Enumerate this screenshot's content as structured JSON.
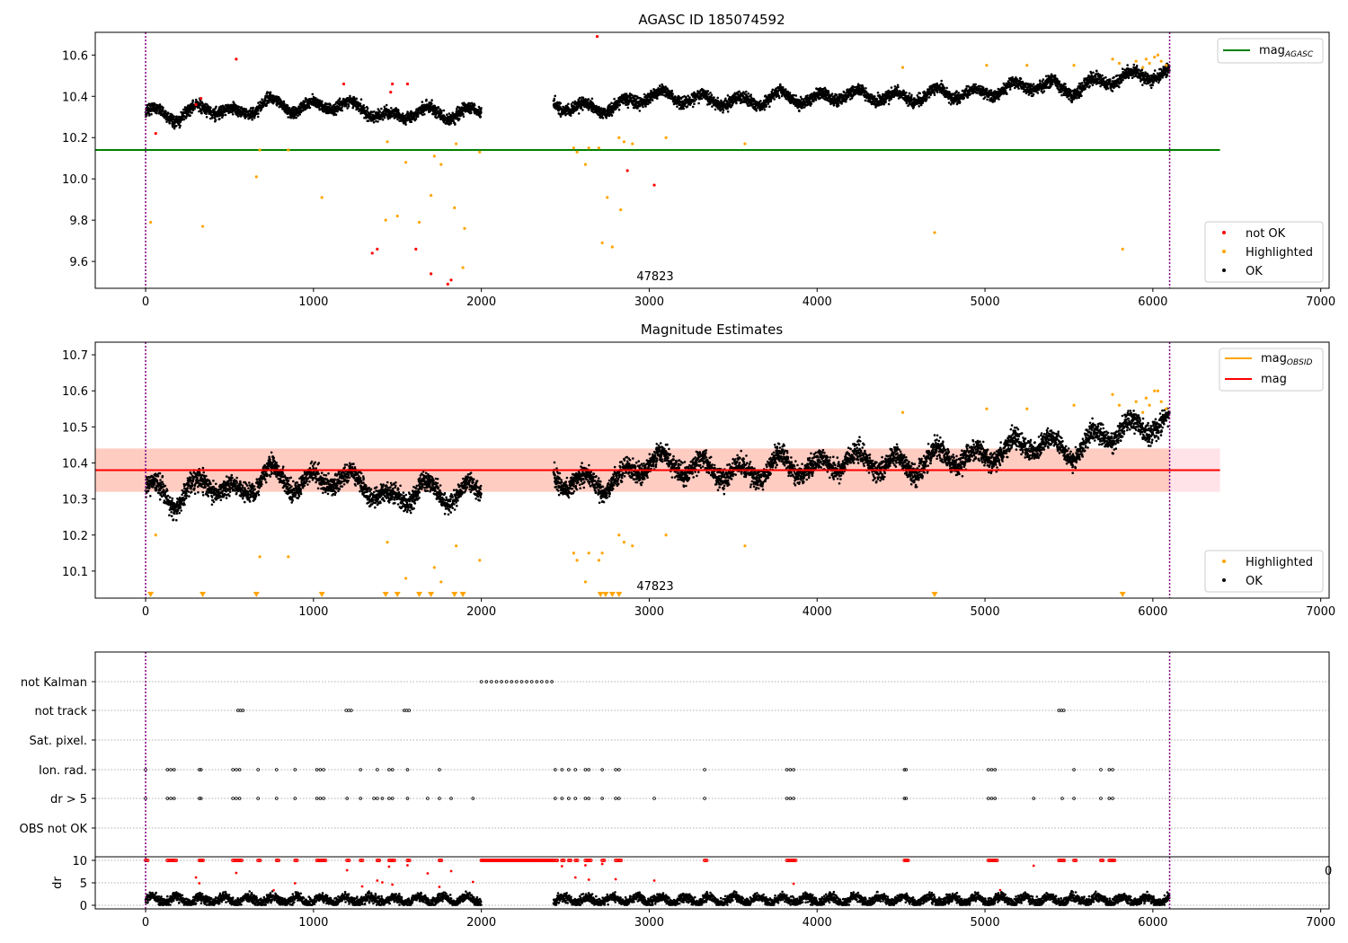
{
  "chart_data": [
    {
      "type": "scatter",
      "title": "AGASC ID 185074592",
      "xlim": [
        -300,
        7050
      ],
      "ylim": [
        9.47,
        10.71
      ],
      "xticks": [
        "0",
        "1000",
        "2000",
        "3000",
        "4000",
        "5000",
        "6000",
        "7000"
      ],
      "yticks": [
        "9.6",
        "9.8",
        "10.0",
        "10.2",
        "10.4",
        "10.6"
      ],
      "obsid_label": "47823",
      "vlines": [
        0,
        6100
      ],
      "hline": {
        "y": 10.14,
        "xmax": 6400,
        "color": "#008000"
      },
      "legend_lines": [
        {
          "label": "mag",
          "sub": "AGASC",
          "color": "#008000"
        }
      ],
      "legend_points": [
        {
          "label": "not OK",
          "color": "#ff0000"
        },
        {
          "label": "Highlighted",
          "color": "#ffa500"
        },
        {
          "label": "OK",
          "color": "#000000"
        }
      ],
      "ok_series": {
        "color": "#000000",
        "segments": [
          {
            "x0": 0,
            "x1": 2000,
            "base": [
              10.33,
              10.3,
              10.35,
              10.31,
              10.37,
              10.34,
              10.36,
              10.35,
              10.29,
              10.33,
              10.31,
              10.33
            ]
          },
          {
            "x0": 2430,
            "x1": 6100,
            "base": [
              10.36,
              10.34,
              10.35,
              10.41,
              10.39,
              10.38,
              10.37,
              10.4,
              10.38,
              10.41,
              10.4,
              10.39,
              10.42,
              10.41,
              10.44,
              10.46,
              10.43,
              10.48,
              10.5,
              10.51
            ]
          }
        ]
      },
      "highlighted_points": [
        [
          30,
          9.79
        ],
        [
          340,
          9.77
        ],
        [
          660,
          10.01
        ],
        [
          680,
          10.14
        ],
        [
          850,
          10.14
        ],
        [
          1050,
          9.91
        ],
        [
          1430,
          9.8
        ],
        [
          1440,
          10.18
        ],
        [
          1500,
          9.82
        ],
        [
          1550,
          10.08
        ],
        [
          1630,
          9.79
        ],
        [
          1700,
          9.92
        ],
        [
          1720,
          10.11
        ],
        [
          1760,
          10.07
        ],
        [
          1840,
          9.86
        ],
        [
          1850,
          10.17
        ],
        [
          1890,
          9.57
        ],
        [
          1900,
          9.76
        ],
        [
          1990,
          10.13
        ],
        [
          2550,
          10.15
        ],
        [
          2570,
          10.13
        ],
        [
          2620,
          10.07
        ],
        [
          2640,
          10.15
        ],
        [
          2700,
          10.15
        ],
        [
          2720,
          9.69
        ],
        [
          2750,
          9.91
        ],
        [
          2780,
          9.67
        ],
        [
          2820,
          10.2
        ],
        [
          2850,
          10.18
        ],
        [
          2900,
          10.17
        ],
        [
          2830,
          9.85
        ],
        [
          3100,
          10.2
        ],
        [
          3570,
          10.17
        ],
        [
          4700,
          9.74
        ],
        [
          5820,
          9.66
        ],
        [
          5010,
          10.55
        ],
        [
          5250,
          10.55
        ],
        [
          5530,
          10.55
        ],
        [
          4510,
          10.54
        ],
        [
          5760,
          10.58
        ],
        [
          5900,
          10.57
        ],
        [
          5960,
          10.58
        ],
        [
          6010,
          10.59
        ],
        [
          6050,
          10.57
        ],
        [
          6080,
          10.55
        ],
        [
          5980,
          10.56
        ],
        [
          6030,
          10.6
        ],
        [
          5940,
          10.54
        ],
        [
          5800,
          10.56
        ]
      ],
      "not_ok_points": [
        [
          60,
          10.22
        ],
        [
          300,
          10.36
        ],
        [
          330,
          10.39
        ],
        [
          540,
          10.58
        ],
        [
          1180,
          10.46
        ],
        [
          1470,
          10.46
        ],
        [
          1460,
          10.42
        ],
        [
          1560,
          10.46
        ],
        [
          1350,
          9.64
        ],
        [
          1380,
          9.66
        ],
        [
          1610,
          9.66
        ],
        [
          1700,
          9.54
        ],
        [
          1800,
          9.49
        ],
        [
          1820,
          9.51
        ],
        [
          2690,
          10.69
        ],
        [
          2870,
          10.04
        ],
        [
          3030,
          9.97
        ]
      ]
    },
    {
      "type": "scatter",
      "title": "Magnitude Estimates",
      "xlim": [
        -300,
        7050
      ],
      "ylim": [
        10.025,
        10.735
      ],
      "xticks": [
        "0",
        "1000",
        "2000",
        "3000",
        "4000",
        "5000",
        "6000",
        "7000"
      ],
      "yticks": [
        "10.1",
        "10.2",
        "10.3",
        "10.4",
        "10.5",
        "10.6",
        "10.7"
      ],
      "obsid_label": "47823",
      "vlines": [
        0,
        6100
      ],
      "band": {
        "y0": 10.32,
        "y1": 10.44,
        "xmax": 6400
      },
      "hline": {
        "y": 10.38,
        "color": "#ff0000"
      },
      "legend_lines": [
        {
          "label": "mag",
          "sub": "OBSID",
          "color": "#ffa500"
        },
        {
          "label": "mag",
          "sub": "",
          "color": "#ff0000"
        }
      ],
      "legend_points": [
        {
          "label": "Highlighted",
          "color": "#ffa500"
        },
        {
          "label": "OK",
          "color": "#000000"
        }
      ],
      "highlighted_points": [
        [
          60,
          10.2
        ],
        [
          680,
          10.14
        ],
        [
          850,
          10.14
        ],
        [
          1440,
          10.18
        ],
        [
          1550,
          10.08
        ],
        [
          1720,
          10.11
        ],
        [
          1760,
          10.07
        ],
        [
          1850,
          10.17
        ],
        [
          1990,
          10.13
        ],
        [
          2550,
          10.15
        ],
        [
          2570,
          10.13
        ],
        [
          2620,
          10.07
        ],
        [
          2640,
          10.15
        ],
        [
          2700,
          10.13
        ],
        [
          2720,
          10.15
        ],
        [
          2820,
          10.2
        ],
        [
          2850,
          10.18
        ],
        [
          2900,
          10.17
        ],
        [
          3100,
          10.2
        ],
        [
          3570,
          10.17
        ],
        [
          5010,
          10.55
        ],
        [
          5250,
          10.55
        ],
        [
          5530,
          10.56
        ],
        [
          4510,
          10.54
        ],
        [
          5760,
          10.59
        ],
        [
          5900,
          10.57
        ],
        [
          5960,
          10.58
        ],
        [
          6010,
          10.6
        ],
        [
          6050,
          10.57
        ],
        [
          6080,
          10.55
        ],
        [
          5980,
          10.56
        ],
        [
          6030,
          10.6
        ],
        [
          5940,
          10.54
        ],
        [
          5800,
          10.56
        ]
      ],
      "lower_limit_markers": [
        30,
        340,
        660,
        1050,
        1430,
        1500,
        1630,
        1700,
        1840,
        1890,
        2710,
        2740,
        2780,
        2820,
        4700,
        5820
      ]
    },
    {
      "type": "scatter",
      "title": "",
      "xlim": [
        -300,
        7050
      ],
      "xticks": [
        "0",
        "1000",
        "2000",
        "3000",
        "4000",
        "5000",
        "6000",
        "7000"
      ],
      "vlines": [
        0,
        6100
      ],
      "flag_rows": [
        {
          "label": "not Kalman",
          "points": [
            2000,
            2030,
            2060,
            2090,
            2120,
            2150,
            2180,
            2210,
            2240,
            2270,
            2300,
            2330,
            2360,
            2390,
            2420
          ]
        },
        {
          "label": "not track",
          "points": [
            550,
            565,
            580,
            1195,
            1210,
            1225,
            1540,
            1555,
            1570,
            5440,
            5455,
            5470
          ]
        },
        {
          "label": "Sat. pixel.",
          "points": []
        },
        {
          "label": "Ion. rad.",
          "points": [
            0,
            130,
            150,
            170,
            320,
            330,
            520,
            540,
            560,
            670,
            780,
            890,
            1020,
            1040,
            1060,
            1280,
            1380,
            1450,
            1470,
            1560,
            1750,
            2440,
            2480,
            2520,
            2560,
            2620,
            2640,
            2720,
            2800,
            2820,
            3330,
            3820,
            3840,
            3860,
            4520,
            4530,
            5020,
            5040,
            5060,
            5530,
            5690,
            5740,
            5760
          ]
        },
        {
          "label": "dr > 5",
          "points": [
            0,
            130,
            150,
            170,
            320,
            330,
            520,
            540,
            560,
            670,
            780,
            890,
            1020,
            1040,
            1060,
            1200,
            1280,
            1360,
            1380,
            1410,
            1450,
            1470,
            1560,
            1680,
            1750,
            1820,
            1950,
            2440,
            2480,
            2520,
            2560,
            2620,
            2640,
            2720,
            2800,
            2820,
            3030,
            3330,
            3820,
            3840,
            3860,
            4520,
            4530,
            5020,
            5040,
            5060,
            5290,
            5460,
            5530,
            5690,
            5740,
            5760
          ]
        },
        {
          "label": "OBS not OK",
          "points": []
        }
      ],
      "dr": {
        "ylabel": "dr",
        "yticks": [
          "0",
          "5",
          "10"
        ],
        "ymax": 10,
        "stray_tick": "0",
        "ok_color": "#000000",
        "flag_color": "#ff0000",
        "segments": [
          [
            0,
            2000
          ],
          [
            2430,
            6100
          ]
        ],
        "capped_x": [
          0,
          130,
          150,
          170,
          320,
          330,
          520,
          540,
          560,
          670,
          780,
          890,
          1020,
          1040,
          1060,
          1200,
          1280,
          1380,
          1450,
          1470,
          1560,
          1750,
          2440,
          2480,
          2520,
          2560,
          2620,
          2640,
          2720,
          2800,
          2820,
          3330,
          3820,
          3840,
          3860,
          4520,
          4530,
          5020,
          5040,
          5060,
          5440,
          5460,
          5530,
          5690,
          5740,
          5760
        ]
      }
    }
  ]
}
